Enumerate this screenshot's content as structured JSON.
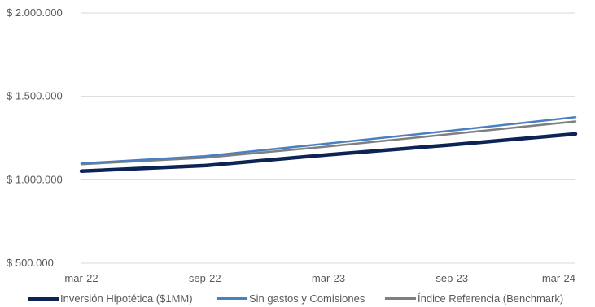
{
  "chart_data": {
    "type": "line",
    "title": "",
    "xlabel": "",
    "ylabel": "",
    "x_ticks": [
      "mar-22",
      "sep-22",
      "mar-23",
      "sep-23",
      "mar-24"
    ],
    "y_ticks": [
      "$ 500.000",
      "$ 1.000.000",
      "$ 1.500.000",
      "$ 2.000.000"
    ],
    "y_tick_values": [
      500000,
      1000000,
      1500000,
      2000000
    ],
    "ylim": [
      500000,
      2000000
    ],
    "xlim": [
      0,
      24
    ],
    "grid": true,
    "legend_position": "bottom",
    "series": [
      {
        "name": "Inversión Hipotética ($1MM)",
        "color": "#0d2356",
        "x": [
          0,
          6,
          12,
          18,
          24
        ],
        "values": [
          1052000,
          1085000,
          1150000,
          1210000,
          1275000
        ]
      },
      {
        "name": "Sin gastos y Comisiones",
        "color": "#4a7fc1",
        "x": [
          0,
          6,
          12,
          18,
          24
        ],
        "values": [
          1098000,
          1142000,
          1218000,
          1295000,
          1375000
        ]
      },
      {
        "name": "Índice Referencia (Benchmark)",
        "color": "#7f7f7f",
        "x": [
          0,
          6,
          12,
          18,
          24
        ],
        "values": [
          1093000,
          1132000,
          1200000,
          1275000,
          1350000
        ]
      }
    ]
  }
}
